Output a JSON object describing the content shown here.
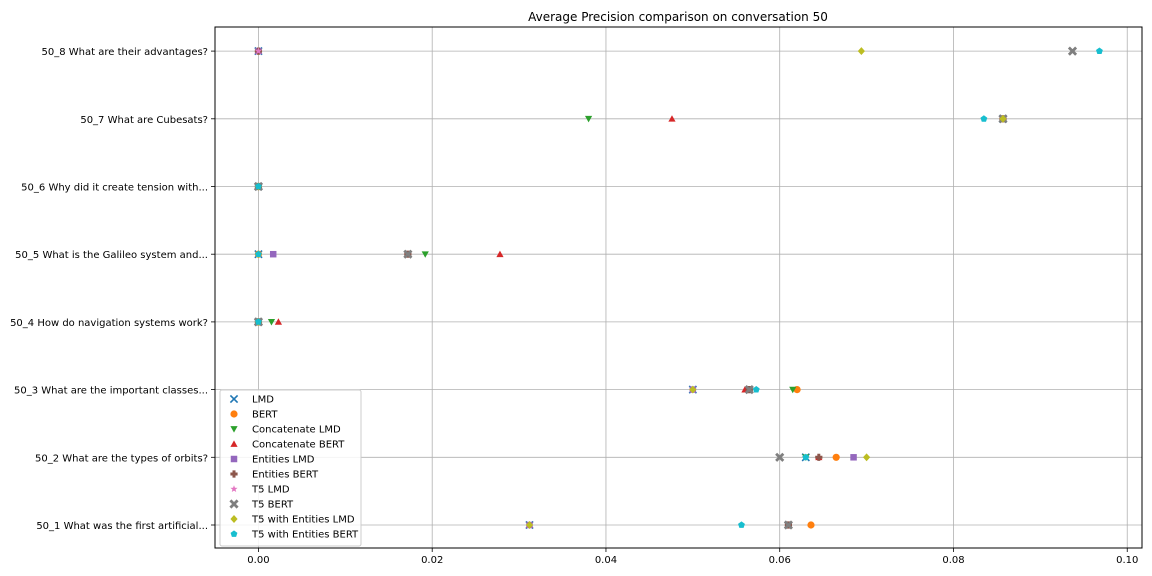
{
  "chart_data": {
    "type": "scatter",
    "title": "Average Precision comparison on conversation 50",
    "xlabel": "",
    "ylabel": "",
    "xlim": [
      -0.005,
      0.1017
    ],
    "x_ticks": [
      "0.00",
      "0.02",
      "0.04",
      "0.06",
      "0.08",
      "0.10"
    ],
    "grid": true,
    "legend_position": "lower-left",
    "categories": [
      "50_1 What was the first artificial...",
      "50_2 What are the types of orbits?",
      "50_3 What are the important classes...",
      "50_4 How do navigation systems work?",
      "50_5 What is the Galileo system and...",
      "50_6 Why did it create tension with...",
      "50_7 What are Cubesats?",
      "50_8 What are their advantages?"
    ],
    "series": [
      {
        "name": "LMD",
        "marker": "x",
        "color": "#1f77b4",
        "values": [
          0.0312,
          0.063,
          0.05,
          0.0,
          0.0,
          0.0,
          0.0857,
          0.0
        ]
      },
      {
        "name": "BERT",
        "marker": "circle",
        "color": "#ff7f0e",
        "values": [
          0.0636,
          0.0665,
          0.062,
          0.0,
          0.0,
          0.0,
          0.0857,
          0.0
        ]
      },
      {
        "name": "Concatenate LMD",
        "marker": "triangle-down",
        "color": "#2ca02c",
        "values": [
          0.0312,
          0.063,
          0.0615,
          0.0015,
          0.0192,
          0.0,
          0.038,
          0.0
        ]
      },
      {
        "name": "Concatenate BERT",
        "marker": "triangle-up",
        "color": "#d62728",
        "values": [
          0.0312,
          0.0645,
          0.056,
          0.0023,
          0.0278,
          0.0,
          0.0476,
          0.0
        ]
      },
      {
        "name": "Entities LMD",
        "marker": "square",
        "color": "#9467bd",
        "values": [
          0.0312,
          0.0685,
          0.05,
          0.0,
          0.0017,
          0.0,
          0.0857,
          0.0
        ]
      },
      {
        "name": "Entities BERT",
        "marker": "plus",
        "color": "#8c564b",
        "values": [
          0.061,
          0.0645,
          0.0565,
          0.0,
          0.0172,
          0.0,
          0.0857,
          0.0
        ]
      },
      {
        "name": "T5 LMD",
        "marker": "star",
        "color": "#e377c2",
        "values": [
          0.0312,
          0.063,
          0.05,
          0.0,
          0.0,
          0.0,
          0.0857,
          0.0
        ]
      },
      {
        "name": "T5 BERT",
        "marker": "x-filled",
        "color": "#7f7f7f",
        "values": [
          0.061,
          0.06,
          0.0565,
          0.0,
          0.0172,
          0.0,
          0.0857,
          0.0937
        ]
      },
      {
        "name": "T5 with Entities LMD",
        "marker": "diamond",
        "color": "#bcbd22",
        "values": [
          0.0312,
          0.07,
          0.05,
          0.0,
          0.0,
          0.0,
          0.0857,
          0.0694
        ]
      },
      {
        "name": "T5 with Entities BERT",
        "marker": "pentagon",
        "color": "#17becf",
        "values": [
          0.0556,
          0.063,
          0.0573,
          0.0,
          0.0,
          0.0,
          0.0835,
          0.0968
        ]
      }
    ]
  }
}
